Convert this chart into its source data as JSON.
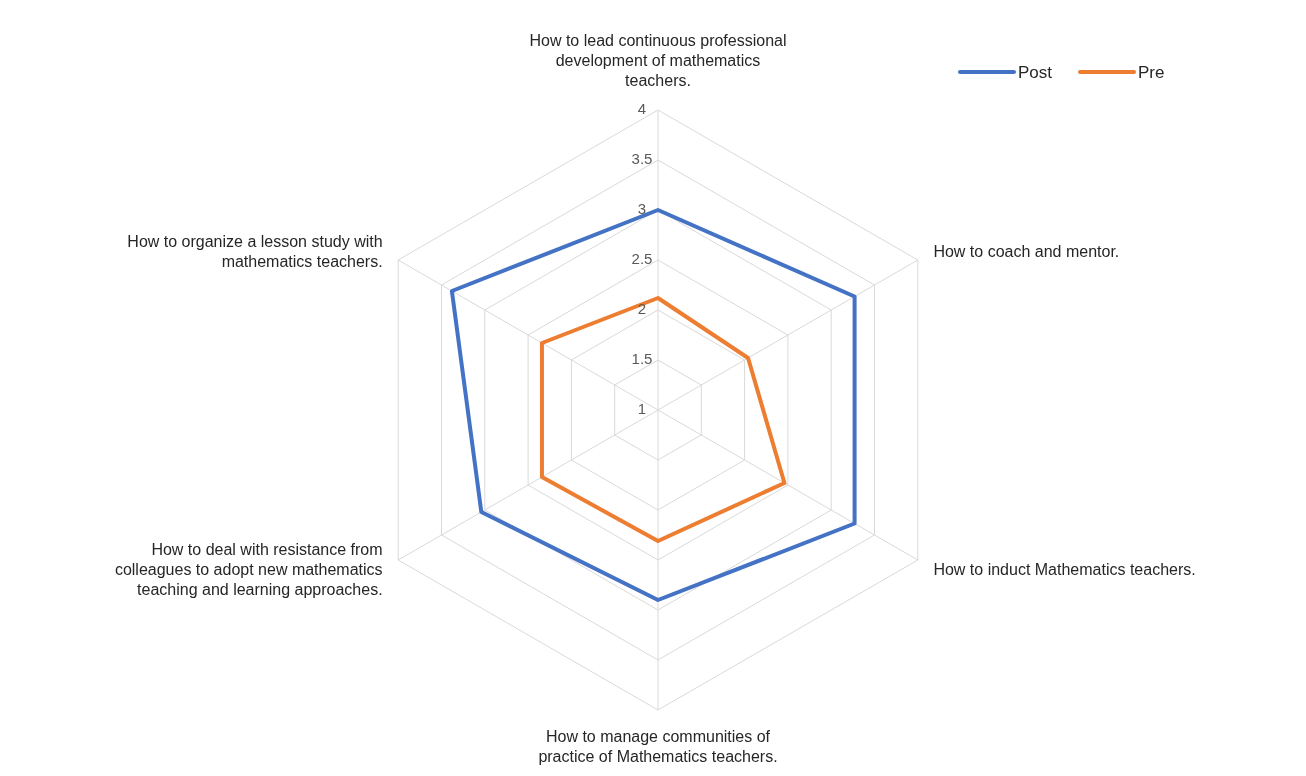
{
  "chart_data": {
    "type": "radar",
    "categories": [
      "How to lead continuous professional development of mathematics teachers.",
      "How to coach and mentor.",
      "How to induct Mathematics teachers.",
      "How to manage communities of practice of Mathematics teachers.",
      "How to deal with resistance from colleagues to adopt new mathematics teaching and learning approaches.",
      "How to organize a lesson study with mathematics teachers."
    ],
    "series": [
      {
        "name": "Post",
        "color": "#4472c4",
        "values": [
          3.0,
          3.27,
          3.27,
          2.9,
          3.04,
          3.38
        ]
      },
      {
        "name": "Pre",
        "color": "#ed7d31",
        "values": [
          2.12,
          2.04,
          2.46,
          2.31,
          2.34,
          2.34
        ]
      }
    ],
    "ylim": [
      1,
      4
    ],
    "yticks": [
      1,
      1.5,
      2,
      2.5,
      3,
      3.5,
      4
    ],
    "grid": true,
    "legend": "top right"
  }
}
